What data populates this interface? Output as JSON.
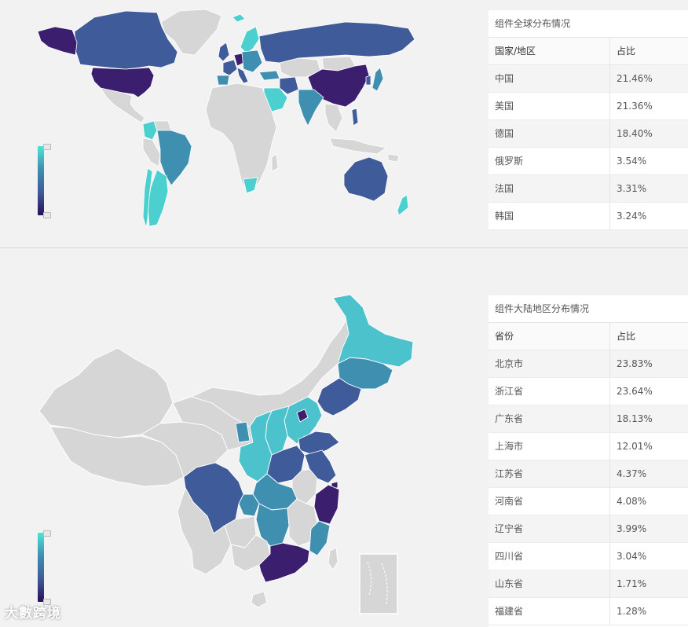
{
  "colors": {
    "no_data": "#d6d6d6",
    "high": "#3b1e6e",
    "mid_high": "#3f5b9a",
    "mid": "#3f8fb0",
    "low": "#4ccfcf",
    "border": "#ffffff"
  },
  "world": {
    "table_title": "组件全球分布情况",
    "col_name": "国家/地区",
    "col_pct": "占比",
    "rows": [
      {
        "name": "中国",
        "pct": "21.46%"
      },
      {
        "name": "美国",
        "pct": "21.36%"
      },
      {
        "name": "德国",
        "pct": "18.40%"
      },
      {
        "name": "俄罗斯",
        "pct": "3.54%"
      },
      {
        "name": "法国",
        "pct": "3.31%"
      },
      {
        "name": "韩国",
        "pct": "3.24%"
      }
    ]
  },
  "china": {
    "table_title": "组件大陆地区分布情况",
    "col_name": "省份",
    "col_pct": "占比",
    "rows": [
      {
        "name": "北京市",
        "pct": "23.83%"
      },
      {
        "name": "浙江省",
        "pct": "23.64%"
      },
      {
        "name": "广东省",
        "pct": "18.13%"
      },
      {
        "name": "上海市",
        "pct": "12.01%"
      },
      {
        "name": "江苏省",
        "pct": "4.37%"
      },
      {
        "name": "河南省",
        "pct": "4.08%"
      },
      {
        "name": "辽宁省",
        "pct": "3.99%"
      },
      {
        "name": "四川省",
        "pct": "3.04%"
      },
      {
        "name": "山东省",
        "pct": "1.71%"
      },
      {
        "name": "福建省",
        "pct": "1.28%"
      }
    ]
  },
  "watermark": "大數跨境"
}
